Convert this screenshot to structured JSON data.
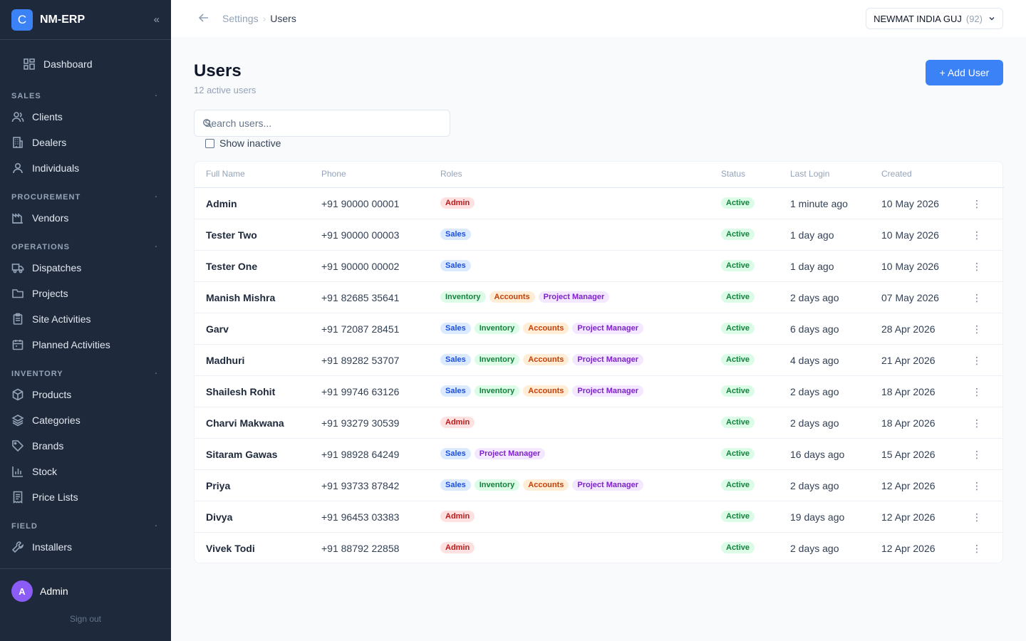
{
  "app": {
    "logo_letter": "C",
    "name": "NM-ERP",
    "collapse_icon": "«"
  },
  "sidebar": {
    "dashboard": "Dashboard",
    "sections": [
      {
        "title": "SALES",
        "items": [
          "Clients",
          "Dealers",
          "Individuals"
        ]
      },
      {
        "title": "PROCUREMENT",
        "items": [
          "Vendors"
        ]
      },
      {
        "title": "OPERATIONS",
        "items": [
          "Dispatches",
          "Projects",
          "Site Activities",
          "Planned Activities"
        ]
      },
      {
        "title": "INVENTORY",
        "items": [
          "Products",
          "Categories",
          "Brands",
          "Stock",
          "Price Lists"
        ]
      },
      {
        "title": "FIELD",
        "items": [
          "Installers"
        ]
      }
    ],
    "user": {
      "initial": "A",
      "name": "Admin"
    },
    "sign_out": "Sign out"
  },
  "topbar": {
    "breadcrumb": [
      "Settings",
      "Users"
    ],
    "company": "NEWMAT INDIA GUJ",
    "company_count": "(92)"
  },
  "page": {
    "title": "Users",
    "subtitle": "12 active users",
    "add_button": "+ Add User",
    "search_placeholder": "Search users...",
    "show_inactive": "Show inactive"
  },
  "table": {
    "headers": [
      "Full Name",
      "Phone",
      "Roles",
      "Status",
      "Last Login",
      "Created"
    ],
    "rows": [
      {
        "name": "Admin",
        "phone": "+91 90000 00001",
        "roles": [
          "Admin"
        ],
        "status": "Active",
        "last_login": "1 minute ago",
        "created": "10 May 2026"
      },
      {
        "name": "Tester Two",
        "phone": "+91 90000 00003",
        "roles": [
          "Sales"
        ],
        "status": "Active",
        "last_login": "1 day ago",
        "created": "10 May 2026"
      },
      {
        "name": "Tester One",
        "phone": "+91 90000 00002",
        "roles": [
          "Sales"
        ],
        "status": "Active",
        "last_login": "1 day ago",
        "created": "10 May 2026"
      },
      {
        "name": "Manish Mishra",
        "phone": "+91 82685 35641",
        "roles": [
          "Inventory",
          "Accounts",
          "Project Manager"
        ],
        "status": "Active",
        "last_login": "2 days ago",
        "created": "07 May 2026"
      },
      {
        "name": "Garv",
        "phone": "+91 72087 28451",
        "roles": [
          "Sales",
          "Inventory",
          "Accounts",
          "Project Manager"
        ],
        "status": "Active",
        "last_login": "6 days ago",
        "created": "28 Apr 2026"
      },
      {
        "name": "Madhuri",
        "phone": "+91 89282 53707",
        "roles": [
          "Sales",
          "Inventory",
          "Accounts",
          "Project Manager"
        ],
        "status": "Active",
        "last_login": "4 days ago",
        "created": "21 Apr 2026"
      },
      {
        "name": "Shailesh Rohit",
        "phone": "+91 99746 63126",
        "roles": [
          "Sales",
          "Inventory",
          "Accounts",
          "Project Manager"
        ],
        "status": "Active",
        "last_login": "2 days ago",
        "created": "18 Apr 2026"
      },
      {
        "name": "Charvi Makwana",
        "phone": "+91 93279 30539",
        "roles": [
          "Admin"
        ],
        "status": "Active",
        "last_login": "2 days ago",
        "created": "18 Apr 2026"
      },
      {
        "name": "Sitaram Gawas",
        "phone": "+91 98928 64249",
        "roles": [
          "Sales",
          "Project Manager"
        ],
        "status": "Active",
        "last_login": "16 days ago",
        "created": "15 Apr 2026"
      },
      {
        "name": "Priya",
        "phone": "+91 93733 87842",
        "roles": [
          "Sales",
          "Inventory",
          "Accounts",
          "Project Manager"
        ],
        "status": "Active",
        "last_login": "2 days ago",
        "created": "12 Apr 2026"
      },
      {
        "name": "Divya",
        "phone": "+91 96453 03383",
        "roles": [
          "Admin"
        ],
        "status": "Active",
        "last_login": "19 days ago",
        "created": "12 Apr 2026"
      },
      {
        "name": "Vivek Todi",
        "phone": "+91 88792 22858",
        "roles": [
          "Admin"
        ],
        "status": "Active",
        "last_login": "2 days ago",
        "created": "12 Apr 2026"
      }
    ]
  },
  "colors": {
    "sidebar_bg": "#1e293b",
    "accent": "#3b82f6",
    "status_active": "#15803d"
  }
}
